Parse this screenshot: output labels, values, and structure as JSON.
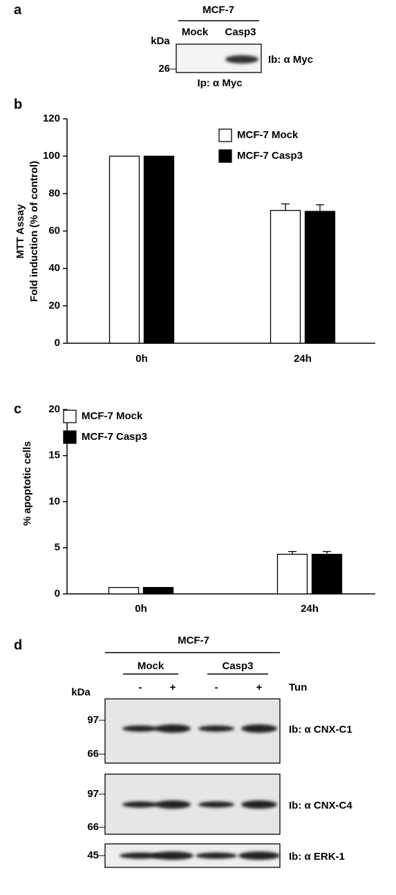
{
  "panel_a": {
    "label": "a",
    "cell_line": "MCF-7",
    "lanes": [
      "Mock",
      "Casp3"
    ],
    "kda_label": "kDa",
    "marker": "26",
    "antibody": "Ib: α Myc",
    "ip": "Ip: α Myc"
  },
  "chart_data": [
    {
      "type": "bar",
      "label": "b",
      "ylabel": [
        "MTT Assay",
        "Fold induction (% of control)"
      ],
      "categories": [
        "0h",
        "24h"
      ],
      "series": [
        {
          "name": "MCF-7 Mock",
          "color": "#ffffff",
          "values": [
            100,
            71
          ],
          "errors": [
            null,
            3.5
          ]
        },
        {
          "name": "MCF-7 Casp3",
          "color": "#000000",
          "values": [
            100,
            70.5
          ],
          "errors": [
            null,
            3.5
          ]
        }
      ],
      "ylim": [
        0,
        120
      ],
      "yticks": [
        0,
        20,
        40,
        60,
        80,
        100,
        120
      ]
    },
    {
      "type": "bar",
      "label": "c",
      "ylabel": [
        "% apoptotic cells"
      ],
      "categories": [
        "0h",
        "24h"
      ],
      "series": [
        {
          "name": "MCF-7 Mock",
          "color": "#ffffff",
          "values": [
            0.7,
            4.3
          ],
          "errors": [
            null,
            0.3
          ]
        },
        {
          "name": "MCF-7 Casp3",
          "color": "#000000",
          "values": [
            0.7,
            4.3
          ],
          "errors": [
            null,
            0.3
          ]
        }
      ],
      "ylim": [
        0,
        20
      ],
      "yticks": [
        0,
        5,
        10,
        15,
        20
      ]
    }
  ],
  "panel_d": {
    "label": "d",
    "cell_line": "MCF-7",
    "groups": [
      "Mock",
      "Casp3"
    ],
    "treatment": [
      "-",
      "+",
      "-",
      "+"
    ],
    "treatment_label": "Tun",
    "kda_label": "kDa",
    "blots": [
      {
        "markers": [
          "97",
          "66"
        ],
        "antibody": "Ib: α CNX-C1"
      },
      {
        "markers": [
          "97",
          "66"
        ],
        "antibody": "Ib: α CNX-C4"
      },
      {
        "markers": [
          "45"
        ],
        "antibody": "Ib: α ERK-1"
      }
    ]
  }
}
